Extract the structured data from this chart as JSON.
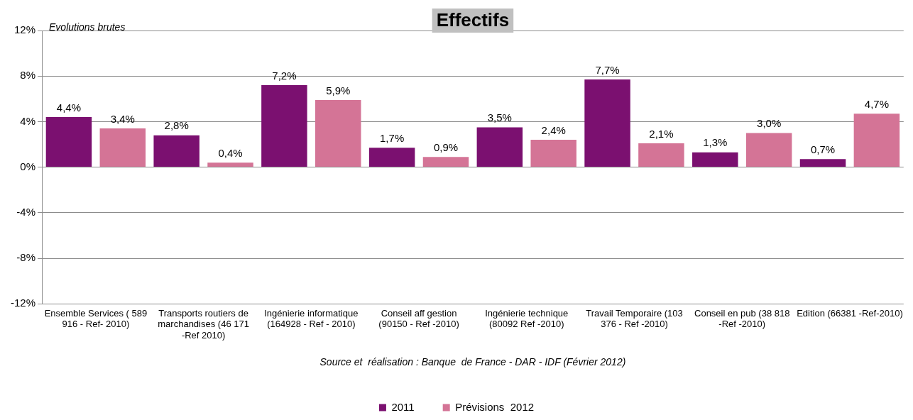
{
  "chart_data": {
    "type": "bar",
    "title": "Effectifs",
    "categories": [
      "Ensemble Services ( 589 916 - Ref- 2010)",
      "Transports routiers de marchandises (46 171 -Ref 2010)",
      "Ingénierie informatique (164928 - Ref - 2010)",
      "Conseil aff gestion (90150 - Ref -2010)",
      "Ingénierie technique (80092 Ref -2010)",
      "Travail Temporaire (103 376 - Ref -2010)",
      "Conseil en pub (38 818 -Ref -2010)",
      "Edition (66381 -Ref-2010)"
    ],
    "series": [
      {
        "name": "2011",
        "color": "#7b1070",
        "values": [
          4.4,
          2.8,
          7.2,
          1.7,
          3.5,
          7.7,
          1.3,
          0.7
        ],
        "value_labels": [
          "4,4%",
          "2,8%",
          "7,2%",
          "1,7%",
          "3,5%",
          "7,7%",
          "1,3%",
          "0,7%"
        ]
      },
      {
        "name": "Prévisions  2012",
        "color": "#d47496",
        "values": [
          3.4,
          0.4,
          5.9,
          0.9,
          2.4,
          2.1,
          3.0,
          4.7
        ],
        "value_labels": [
          "3,4%",
          "0,4%",
          "5,9%",
          "0,9%",
          "2,4%",
          "2,1%",
          "3,0%",
          "4,7%"
        ]
      }
    ],
    "ylim": [
      -12,
      12
    ],
    "yticks": [
      {
        "value": -12,
        "label": "-12%"
      },
      {
        "value": -8,
        "label": "-8%"
      },
      {
        "value": -4,
        "label": "-4%"
      },
      {
        "value": 0,
        "label": "0%"
      },
      {
        "value": 4,
        "label": "4%"
      },
      {
        "value": 8,
        "label": "8%"
      },
      {
        "value": 12,
        "label": "12%"
      }
    ],
    "grid": "y",
    "legend": "bottom",
    "annotations": [
      "Evolutions brutes",
      "Source et  réalisation : Banque  de France - DAR - IDF (Février 2012)"
    ]
  }
}
